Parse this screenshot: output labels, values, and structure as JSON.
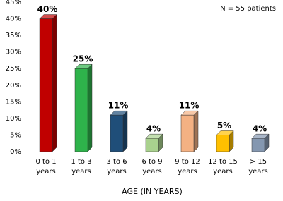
{
  "chart_data": {
    "type": "bar",
    "annotation": "N = 55 patients",
    "x_label": "AGE (IN YEARS)",
    "categories": [
      "0 to 1 years",
      "1 to 3 years",
      "3 to 6 years",
      "6 to 9 years",
      "9 to 12 years",
      "12 to 15 years",
      "> 15 years"
    ],
    "values": [
      40,
      25,
      11,
      4,
      11,
      5,
      4
    ],
    "value_labels": [
      "40%",
      "25%",
      "11%",
      "4%",
      "11%",
      "5%",
      "4%"
    ],
    "colors": [
      "#c00000",
      "#2eb34b",
      "#1f4e79",
      "#a9d18e",
      "#f4b183",
      "#ffc000",
      "#8497b0"
    ],
    "ylim": [
      0,
      45
    ],
    "yticks": [
      {
        "value": 0,
        "label": "0%"
      },
      {
        "value": 5,
        "label": "5%"
      },
      {
        "value": 10,
        "label": "10%"
      },
      {
        "value": 15,
        "label": "15%"
      },
      {
        "value": 20,
        "label": "20%"
      },
      {
        "value": 25,
        "label": "25%"
      },
      {
        "value": 30,
        "label": "30%"
      },
      {
        "value": 35,
        "label": "35%"
      },
      {
        "value": 40,
        "label": "40%"
      },
      {
        "value": 45,
        "label": "45%"
      }
    ],
    "grid": false
  }
}
